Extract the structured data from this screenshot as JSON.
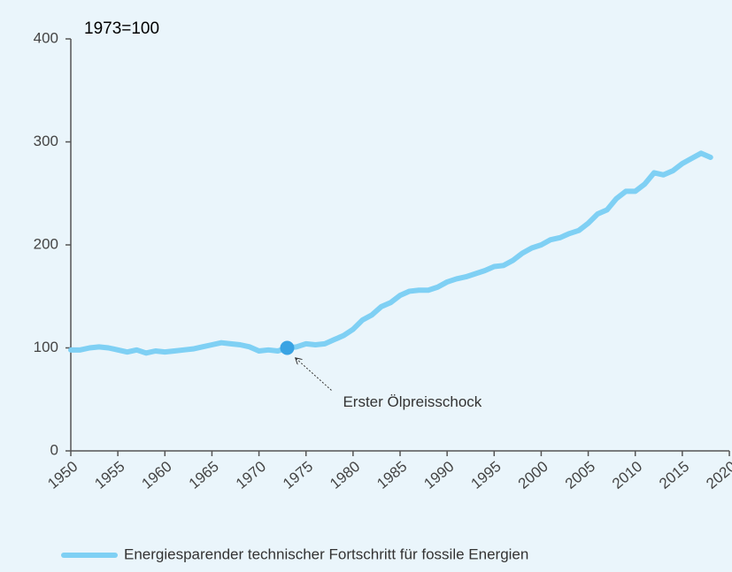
{
  "chart_data": {
    "type": "line",
    "subtitle": "1973=100",
    "x": [
      1950,
      1951,
      1952,
      1953,
      1954,
      1955,
      1956,
      1957,
      1958,
      1959,
      1960,
      1961,
      1962,
      1963,
      1964,
      1965,
      1966,
      1967,
      1968,
      1969,
      1970,
      1971,
      1972,
      1973,
      1974,
      1975,
      1976,
      1977,
      1978,
      1979,
      1980,
      1981,
      1982,
      1983,
      1984,
      1985,
      1986,
      1987,
      1988,
      1989,
      1990,
      1991,
      1992,
      1993,
      1994,
      1995,
      1996,
      1997,
      1998,
      1999,
      2000,
      2001,
      2002,
      2003,
      2004,
      2005,
      2006,
      2007,
      2008,
      2009,
      2010,
      2011,
      2012,
      2013,
      2014,
      2015,
      2016,
      2017,
      2018
    ],
    "series": [
      {
        "name": "Energiesparender technischer Fortschritt für fossile Energien",
        "color": "#7fd0f4",
        "values": [
          98,
          98,
          100,
          101,
          100,
          98,
          96,
          98,
          95,
          97,
          96,
          97,
          98,
          99,
          101,
          103,
          105,
          104,
          103,
          101,
          97,
          98,
          97,
          100,
          101,
          104,
          103,
          104,
          108,
          112,
          118,
          127,
          132,
          140,
          144,
          151,
          155,
          156,
          156,
          159,
          164,
          167,
          169,
          172,
          175,
          179,
          180,
          185,
          192,
          197,
          200,
          205,
          207,
          211,
          214,
          221,
          230,
          234,
          245,
          252,
          252,
          259,
          270,
          268,
          272,
          279,
          284,
          289,
          285
        ]
      }
    ],
    "annotation": {
      "text": "Erster Ölpreisschock",
      "x": 1973,
      "y": 100,
      "color": "#3aa3e3"
    },
    "xlim": [
      1950,
      2020
    ],
    "xticks": [
      1950,
      1955,
      1960,
      1965,
      1970,
      1975,
      1980,
      1985,
      1990,
      1995,
      2000,
      2005,
      2010,
      2015,
      2020
    ],
    "ylim": [
      0,
      400
    ],
    "yticks": [
      0,
      100,
      200,
      300,
      400
    ]
  }
}
